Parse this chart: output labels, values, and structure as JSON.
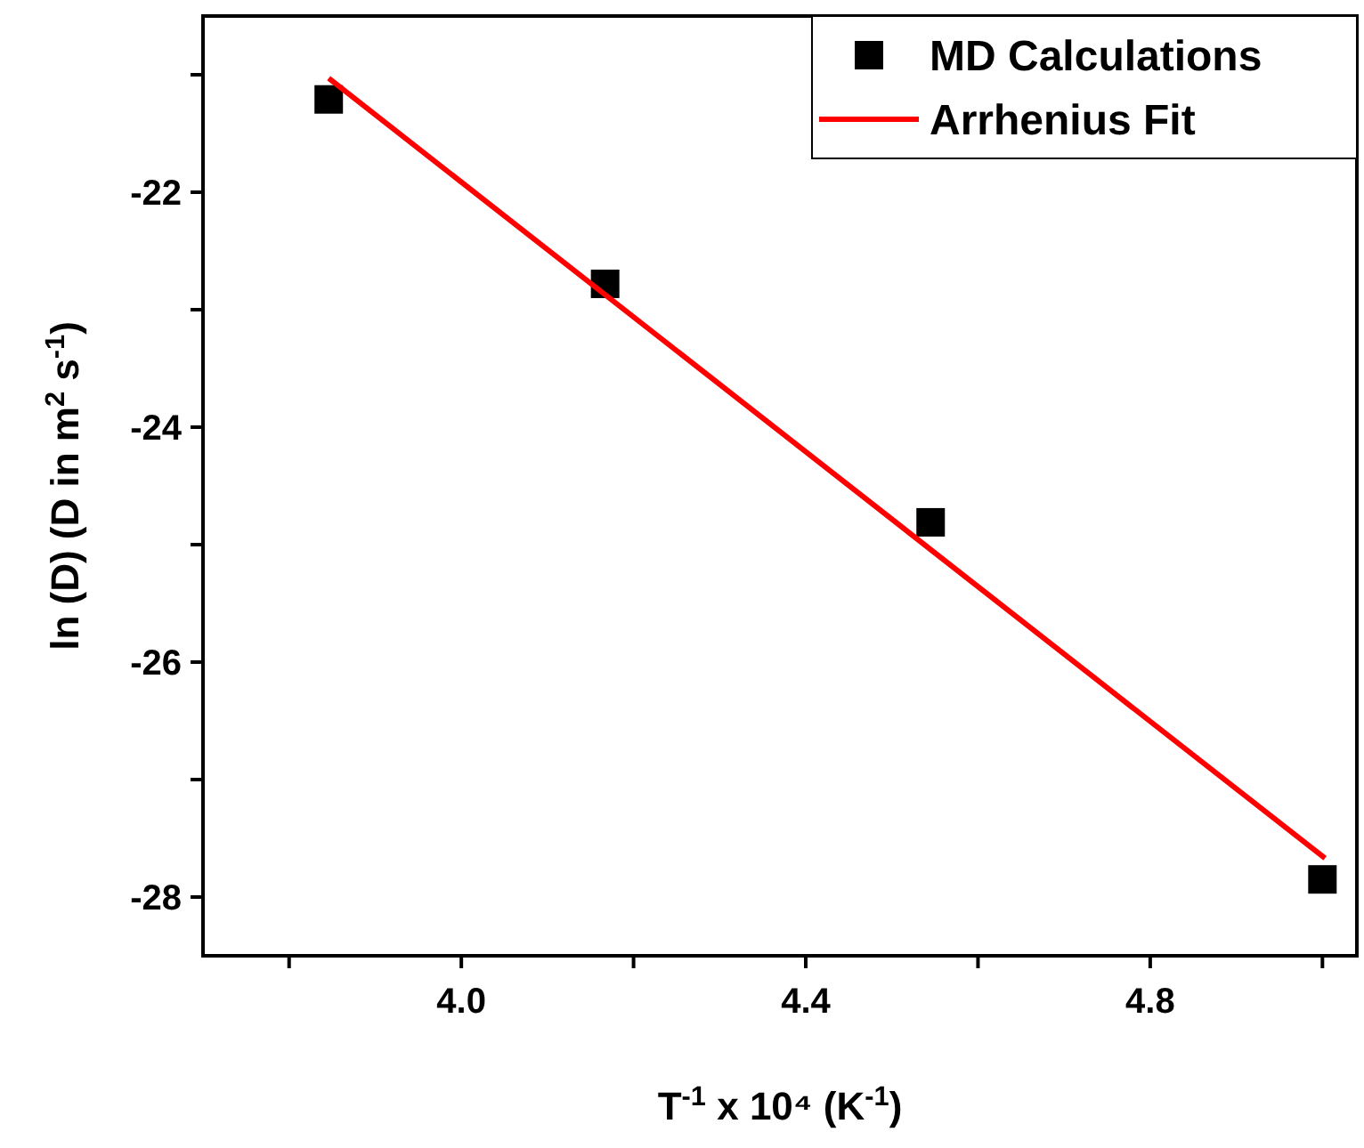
{
  "chart_data": {
    "type": "scatter",
    "xlabel": "T$^{-1}$ x 10⁴ (K$^{-1}$)",
    "ylabel": "ln (D) (D in m$^{2}$ s$^{-1}$)",
    "xlim": [
      3.7,
      5.04
    ],
    "ylim": [
      -28.5,
      -20.5
    ],
    "xticks": [
      {
        "value": 3.8,
        "label": null
      },
      {
        "value": 4.0,
        "label": "4.0"
      },
      {
        "value": 4.2,
        "label": null
      },
      {
        "value": 4.4,
        "label": "4.4"
      },
      {
        "value": 4.6,
        "label": null
      },
      {
        "value": 4.8,
        "label": "4.8"
      },
      {
        "value": 5.0,
        "label": null
      }
    ],
    "yticks": [
      {
        "value": -21,
        "label": null
      },
      -22,
      {
        "value": -23,
        "label": null
      },
      -24,
      {
        "value": -25,
        "label": null
      },
      -26,
      {
        "value": -27,
        "label": null
      },
      -28
    ],
    "grid": false,
    "legend": "top right",
    "marker": "square",
    "series": [
      {
        "name": "MD Calculations",
        "color": "#000000",
        "x": [
          3.846,
          4.167,
          4.545,
          5.0
        ],
        "values": [
          -21.21,
          -22.78,
          -24.81,
          -27.85
        ]
      },
      {
        "name": "Arrhenius Fit",
        "type": "line",
        "color": "#ff0000",
        "line_style": "solid",
        "marker": "none",
        "x": [
          3.846,
          5.003
        ],
        "values": [
          -21.03,
          -27.67
        ]
      }
    ]
  }
}
